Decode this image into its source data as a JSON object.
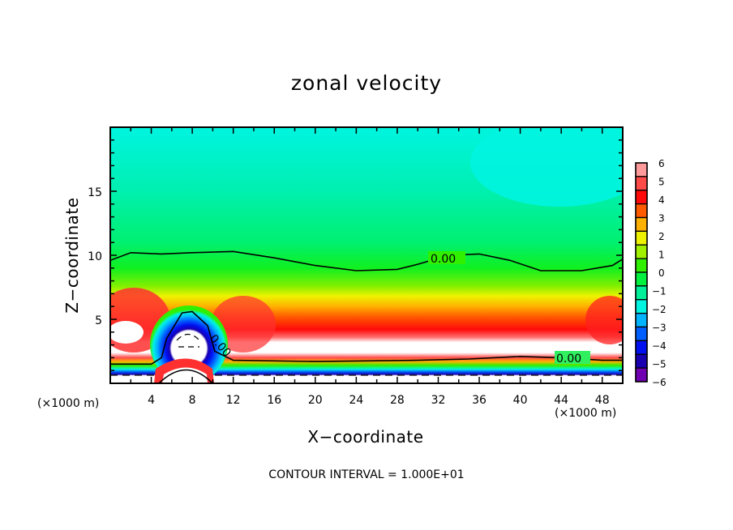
{
  "chart_data": {
    "type": "heatmap",
    "subtype": "filled-contour",
    "title": "zonal velocity",
    "xlabel": "X−coordinate",
    "ylabel": "Z−coordinate",
    "x_unit_label": "(×1000 m)",
    "z_unit_label": "(×1000 m)",
    "xlim": [
      0,
      50
    ],
    "ylim": [
      0,
      20
    ],
    "x_ticks": [
      4,
      8,
      12,
      16,
      20,
      24,
      28,
      32,
      36,
      40,
      44,
      48
    ],
    "y_ticks": [
      5,
      10,
      15
    ],
    "colorbar": {
      "range": [
        -6,
        6
      ],
      "tick_labels": [
        "6",
        "5",
        "4",
        "3",
        "2",
        "1",
        "0",
        "−1",
        "−2",
        "−3",
        "−4",
        "−5",
        "−6"
      ],
      "colors": [
        "#ff9a9a",
        "#ff4a4a",
        "#ff0a0a",
        "#ff5a00",
        "#ffb000",
        "#eef200",
        "#a0f000",
        "#30f000",
        "#00f040",
        "#00f09a",
        "#00f4e0",
        "#00b4ff",
        "#0060ff",
        "#0010f0",
        "#1800b0",
        "#7000b0"
      ]
    },
    "contour_interval_text": "CONTOUR INTERVAL = 1.000E+01",
    "contour_labels": [
      "0.00",
      "0.00",
      "0.00"
    ],
    "zero_contour_upper_z": [
      [
        0,
        9.6
      ],
      [
        2,
        10.2
      ],
      [
        5,
        10.1
      ],
      [
        8,
        10.2
      ],
      [
        12,
        10.3
      ],
      [
        16,
        9.8
      ],
      [
        20,
        9.2
      ],
      [
        24,
        8.8
      ],
      [
        28,
        8.9
      ],
      [
        30,
        9.3
      ],
      [
        33,
        10.0
      ],
      [
        36,
        10.1
      ],
      [
        39,
        9.6
      ],
      [
        42,
        8.8
      ],
      [
        46,
        8.8
      ],
      [
        49,
        9.2
      ],
      [
        50,
        9.7
      ]
    ],
    "zero_contour_lower_z": [
      [
        0,
        1.5
      ],
      [
        4,
        1.5
      ],
      [
        5,
        2.0
      ],
      [
        5.5,
        3.5
      ],
      [
        7,
        5.5
      ],
      [
        8,
        5.6
      ],
      [
        9.5,
        4.5
      ],
      [
        10.2,
        2.5
      ],
      [
        12,
        1.8
      ],
      [
        20,
        1.7
      ],
      [
        30,
        1.8
      ],
      [
        35,
        1.9
      ],
      [
        40,
        2.1
      ],
      [
        44,
        2.0
      ],
      [
        48,
        1.8
      ],
      [
        50,
        1.8
      ]
    ],
    "notes": "Filled contour of zonal velocity (m/s). Field is positive (green→red) in 3–8 km layer with a strong jet (>6, white) near z=3–4 km; negative (cyan/blue) near the surface and above ~10 km. A negative cell (white core <−6) sits over x≈6–10 km at z≈2–5 km."
  }
}
